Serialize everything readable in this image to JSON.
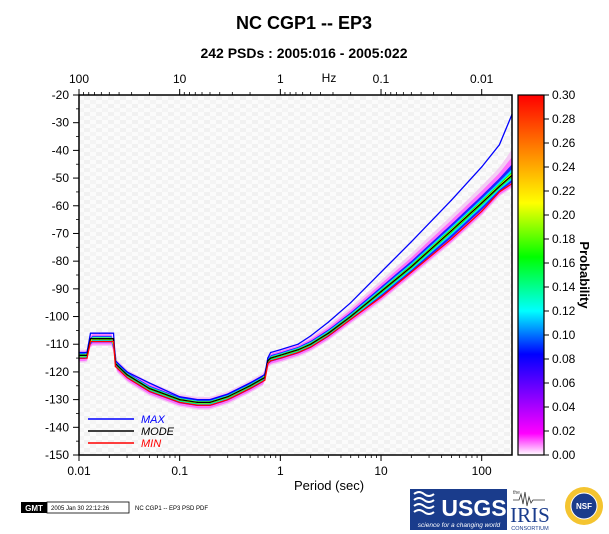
{
  "chart_data": {
    "type": "line",
    "title": "NC CGP1 -- EP3",
    "subtitle": "242 PSDs : 2005:016 - 2005:022",
    "xlabel": "Period (sec)",
    "top_axis_label": "Hz",
    "x_scale": "log",
    "xlim": [
      0.01,
      200
    ],
    "ylim": [
      -150,
      -20
    ],
    "x_ticks": [
      0.01,
      0.1,
      1,
      10,
      100
    ],
    "x_tick_labels": [
      "0.01",
      "0.1",
      "1",
      "10",
      "100"
    ],
    "top_ticks": [
      100,
      10,
      1,
      0.1,
      0.01
    ],
    "top_tick_labels": [
      "100",
      "10",
      "1",
      "0.1",
      "0.01"
    ],
    "y_ticks": [
      -20,
      -30,
      -40,
      -50,
      -60,
      -70,
      -80,
      -90,
      -100,
      -110,
      -120,
      -130,
      -140,
      -150
    ],
    "y_tick_labels": [
      "-20",
      "-30",
      "-40",
      "-50",
      "-60",
      "-70",
      "-80",
      "-90",
      "-100",
      "-110",
      "-120",
      "-130",
      "-140",
      "-150"
    ],
    "series": [
      {
        "name": "MAX",
        "color": "#0000ff",
        "x": [
          0.01,
          0.012,
          0.013,
          0.016,
          0.02,
          0.022,
          0.023,
          0.03,
          0.05,
          0.1,
          0.15,
          0.2,
          0.3,
          0.5,
          0.7,
          0.75,
          0.8,
          1,
          1.5,
          2,
          3,
          5,
          10,
          20,
          50,
          100,
          150,
          200
        ],
        "y": [
          -113,
          -113,
          -106,
          -106,
          -106,
          -106,
          -116,
          -120,
          -124,
          -129,
          -130,
          -130,
          -128,
          -124,
          -121,
          -115,
          -113,
          -112,
          -110,
          -107,
          -102,
          -95,
          -84,
          -73,
          -58,
          -46,
          -38,
          -27
        ]
      },
      {
        "name": "MODE",
        "color": "#000000",
        "x": [
          0.01,
          0.012,
          0.013,
          0.016,
          0.02,
          0.022,
          0.023,
          0.03,
          0.05,
          0.1,
          0.15,
          0.2,
          0.3,
          0.5,
          0.7,
          0.75,
          0.8,
          1,
          1.5,
          2,
          3,
          5,
          10,
          20,
          50,
          100,
          150,
          200
        ],
        "y": [
          -114,
          -114,
          -108,
          -108,
          -108,
          -108,
          -117,
          -121,
          -126,
          -130,
          -131,
          -131,
          -129,
          -125,
          -122,
          -116,
          -115,
          -114,
          -112,
          -110,
          -106,
          -100,
          -91,
          -82,
          -69,
          -59,
          -53,
          -49
        ]
      },
      {
        "name": "MIN",
        "color": "#ff0000",
        "x": [
          0.01,
          0.012,
          0.013,
          0.016,
          0.02,
          0.022,
          0.023,
          0.03,
          0.05,
          0.1,
          0.15,
          0.2,
          0.3,
          0.5,
          0.7,
          0.75,
          0.8,
          1,
          1.5,
          2,
          3,
          5,
          10,
          20,
          50,
          100,
          150,
          200
        ],
        "y": [
          -115,
          -115,
          -109,
          -109,
          -109,
          -109,
          -118,
          -122,
          -127,
          -131,
          -132,
          -132,
          -130,
          -126,
          -123,
          -117,
          -116,
          -115,
          -113,
          -111,
          -107,
          -101,
          -93,
          -84,
          -72,
          -62,
          -55,
          -52
        ]
      }
    ],
    "colorbar": {
      "label": "Probability",
      "range": [
        0,
        0.3
      ],
      "ticks": [
        0.0,
        0.02,
        0.04,
        0.06,
        0.08,
        0.1,
        0.12,
        0.14,
        0.16,
        0.18,
        0.2,
        0.22,
        0.24,
        0.26,
        0.28,
        0.3
      ],
      "tick_labels": [
        "0.00",
        "0.02",
        "0.04",
        "0.06",
        "0.08",
        "0.10",
        "0.12",
        "0.14",
        "0.16",
        "0.18",
        "0.20",
        "0.22",
        "0.24",
        "0.26",
        "0.28",
        "0.30"
      ],
      "colors": [
        "#ffffff",
        "#ff00ff",
        "#0000ff",
        "#00ffff",
        "#00ff00",
        "#ffff00",
        "#ff8000",
        "#ff0000"
      ]
    },
    "grid": false,
    "legend_position": "bottom-left"
  },
  "footer": {
    "gmt_badge": "GMT",
    "timestamp": "2005 Jan 30 22:12:26",
    "caption": "NC CGP1 -- EP3 PSD PDF"
  },
  "logos": {
    "usgs": {
      "name": "USGS",
      "tagline": "science for a changing world"
    },
    "iris": {
      "prefix": "the",
      "name": "IRIS",
      "subtitle": "CONSORTIUM"
    },
    "nsf": {
      "name": "NSF"
    }
  }
}
